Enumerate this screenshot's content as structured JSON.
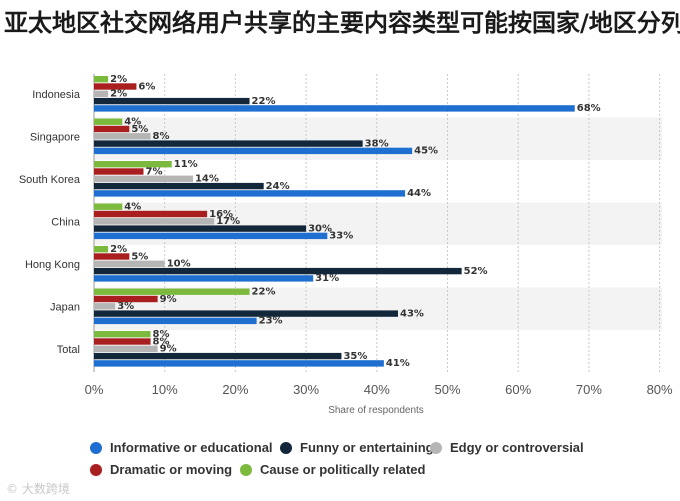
{
  "title": "亚太地区社交网络用户共享的主要内容类型可能按国家/地区分列",
  "watermark": "© 大数跨境",
  "chart_data": {
    "type": "bar",
    "orientation": "horizontal",
    "categories": [
      "Indonesia",
      "Singapore",
      "South Korea",
      "China",
      "Hong Kong",
      "Japan",
      "Total"
    ],
    "series": [
      {
        "name": "Cause or politically related",
        "color": "#7cba3d",
        "values": [
          2,
          4,
          11,
          4,
          2,
          22,
          8
        ]
      },
      {
        "name": "Dramatic or moving",
        "color": "#a91e1e",
        "values": [
          6,
          5,
          7,
          16,
          5,
          9,
          8
        ]
      },
      {
        "name": "Edgy or controversial",
        "color": "#b5b5b5",
        "values": [
          2,
          8,
          14,
          17,
          10,
          3,
          9
        ]
      },
      {
        "name": "Funny or entertaining",
        "color": "#13273b",
        "values": [
          22,
          38,
          24,
          30,
          52,
          43,
          35
        ]
      },
      {
        "name": "Informative or educational",
        "color": "#1e6fcf",
        "values": [
          68,
          45,
          44,
          33,
          31,
          23,
          41
        ]
      }
    ],
    "xlabel": "Share of respondents",
    "xlim": [
      0,
      80
    ],
    "xticks": [
      "0%",
      "10%",
      "20%",
      "30%",
      "40%",
      "50%",
      "60%",
      "70%",
      "80%"
    ],
    "value_suffix": "%",
    "grid": "vertical dotted",
    "legend_position": "bottom",
    "legend_order": [
      "Informative or educational",
      "Funny or entertaining",
      "Edgy or controversial",
      "Dramatic or moving",
      "Cause or politically related"
    ]
  }
}
